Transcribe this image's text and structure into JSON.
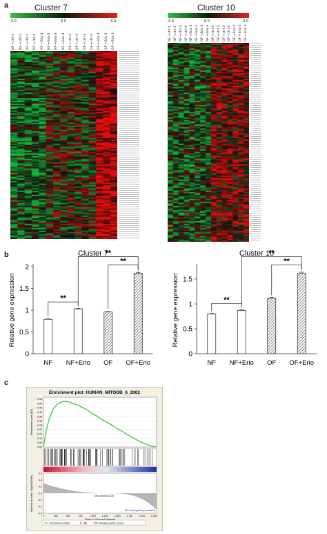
{
  "panels": {
    "a": "a",
    "b": "b",
    "c": "c"
  },
  "heatmaps": [
    {
      "id": "cluster7",
      "title": "Cluster 7",
      "scale_min": "-3.0",
      "scale_mid": "0.0",
      "scale_max": "3.0",
      "columns": [
        "NF-+ctrl-1",
        "NF-+ctrl-2",
        "NF-+ctrl-3",
        "NF-+ctrl-4",
        "NF-+Erio-1",
        "NF-+Erio-2",
        "NF-+Erio-3",
        "NF-+Erio-4",
        "OF-+ctrl-1",
        "OF-+ctrl-2",
        "OF-+ctrl-3",
        "OF-+ctrl-4",
        "OF-+Erio-1",
        "OF-+Erio-2",
        "OF-+Erio-3"
      ]
    },
    {
      "id": "cluster10",
      "title": "Cluster 10",
      "scale_min": "-1.0",
      "scale_mid": "0.0",
      "scale_max": "3.0",
      "columns": [
        "NF-+ctrl-1",
        "NF-+ctrl-2",
        "NF-+ctrl-3",
        "NF-+ctrl-4",
        "NF-+Erio-1",
        "NF-+Erio-2",
        "NF-+Erio-3",
        "NF-+Erio-4",
        "OF-+ctrl-1",
        "OF-+ctrl-2",
        "OF-+ctrl-3",
        "OF-+ctrl-4",
        "OF-+Erio-1",
        "OF-+Erio-2",
        "OF-+Erio-3"
      ]
    }
  ],
  "chart_data": [
    {
      "type": "bar",
      "title": "Cluster 7",
      "categories": [
        "NF",
        "NF+Erio",
        "OF",
        "OF+Erio"
      ],
      "values": [
        0.79,
        1.03,
        0.96,
        1.85
      ],
      "errors": [
        0.01,
        0.01,
        0.01,
        0.02
      ],
      "ylabel": "Relative gene expression",
      "ylim": [
        0,
        2
      ],
      "yticks": [
        "0",
        "0.5",
        "1",
        "1.5",
        "2"
      ],
      "significance": [
        "**",
        "**",
        "**"
      ]
    },
    {
      "type": "bar",
      "title": "Cluster 10",
      "categories": [
        "NF",
        "NF+Erio",
        "OF",
        "OF+Erio"
      ],
      "values": [
        0.8,
        0.87,
        1.12,
        1.62
      ],
      "errors": [
        0.01,
        0.01,
        0.01,
        0.02
      ],
      "ylabel": "Relative gene expression",
      "ylim": [
        0,
        1.75
      ],
      "yticks": [
        "0",
        "0.5",
        "1",
        "1.5"
      ],
      "significance": [
        "**",
        "**",
        "**"
      ]
    },
    {
      "type": "line",
      "title": "Enrichment plot: HUMAN_MITODB_6_2002",
      "ylabel_top": "Enrichment score (ES)",
      "ylabel_bottom": "Ranked list metric (Signal2Noise)",
      "xlabel": "Rank in Ordered Dataset",
      "yticks_top": [
        "0.55",
        "0.50",
        "0.45",
        "0.40",
        "0.35",
        "0.30",
        "0.25",
        "0.20",
        "0.15",
        "0.10",
        "0.05",
        "0.00"
      ],
      "yticks_bottom": [
        "0.6",
        "0.4",
        "0.2",
        "0.0",
        "-0.2",
        "-0.4",
        "-0.6"
      ],
      "xticks": [
        "0",
        "250",
        "500",
        "750",
        "1,000",
        "1,250",
        "1,500",
        "1,750",
        "2,000",
        "2,250"
      ],
      "ylim_top": [
        0,
        0.57
      ],
      "xlim": [
        0,
        2300
      ],
      "es_profile": {
        "x": [
          0,
          60,
          120,
          200,
          300,
          400,
          500,
          600,
          700,
          800,
          900,
          1000,
          1100,
          1200,
          1300,
          1400,
          1500,
          1600,
          1700,
          1800,
          1900,
          2000,
          2100,
          2200,
          2300
        ],
        "y": [
          0.0,
          0.2,
          0.33,
          0.44,
          0.5,
          0.52,
          0.52,
          0.5,
          0.48,
          0.45,
          0.42,
          0.38,
          0.35,
          0.31,
          0.28,
          0.25,
          0.21,
          0.18,
          0.14,
          0.11,
          0.08,
          0.05,
          0.03,
          0.01,
          0.0
        ]
      },
      "label_pos": "'OF erio' (positively correlated)",
      "label_neg": "'OF ctrl' (negatively correlated)",
      "zero_cross": "Zero cross at 1230",
      "legend": [
        "Enrichment profile",
        "Hits",
        "Ranking metric scores"
      ]
    }
  ],
  "colors": {
    "green": "#3fae35",
    "red": "#c0282a",
    "hatch": "#555555"
  }
}
